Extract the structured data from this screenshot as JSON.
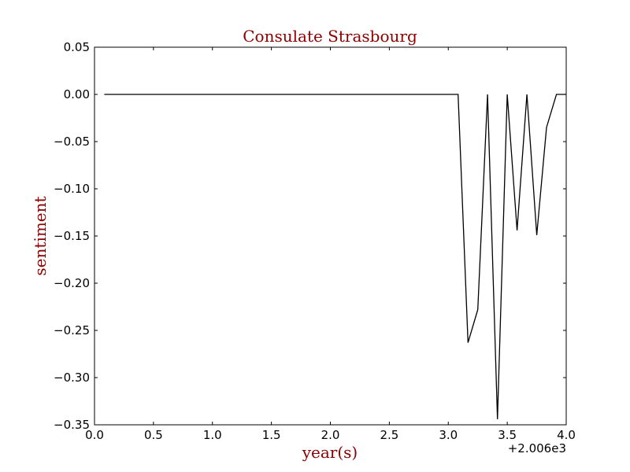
{
  "chart_data": {
    "type": "line",
    "title": "Consulate Strasbourg",
    "xlabel": "year(s)",
    "ylabel": "sentiment",
    "x_offset_label": "+2.006e3",
    "xlim": [
      0.0,
      4.0
    ],
    "ylim": [
      -0.35,
      0.05
    ],
    "x_ticks": [
      "0.0",
      "0.5",
      "1.0",
      "1.5",
      "2.0",
      "2.5",
      "3.0",
      "3.5",
      "4.0"
    ],
    "y_ticks": [
      "0.05",
      "0.00",
      "−0.05",
      "−0.10",
      "−0.15",
      "−0.20",
      "−0.25",
      "−0.30",
      "−0.35"
    ],
    "grid": false,
    "series": [
      {
        "color": "#000000",
        "x": [
          0.083,
          3.083,
          3.167,
          3.25,
          3.333,
          3.417,
          3.5,
          3.583,
          3.667,
          3.75,
          3.833,
          3.917,
          4.0
        ],
        "y": [
          0.0,
          0.0,
          -0.263,
          -0.228,
          0.0,
          -0.344,
          0.0,
          -0.144,
          0.0,
          -0.149,
          -0.035,
          0.0,
          0.0
        ]
      }
    ],
    "colors": {
      "label": "#8b0000",
      "axes": "#000000"
    }
  }
}
